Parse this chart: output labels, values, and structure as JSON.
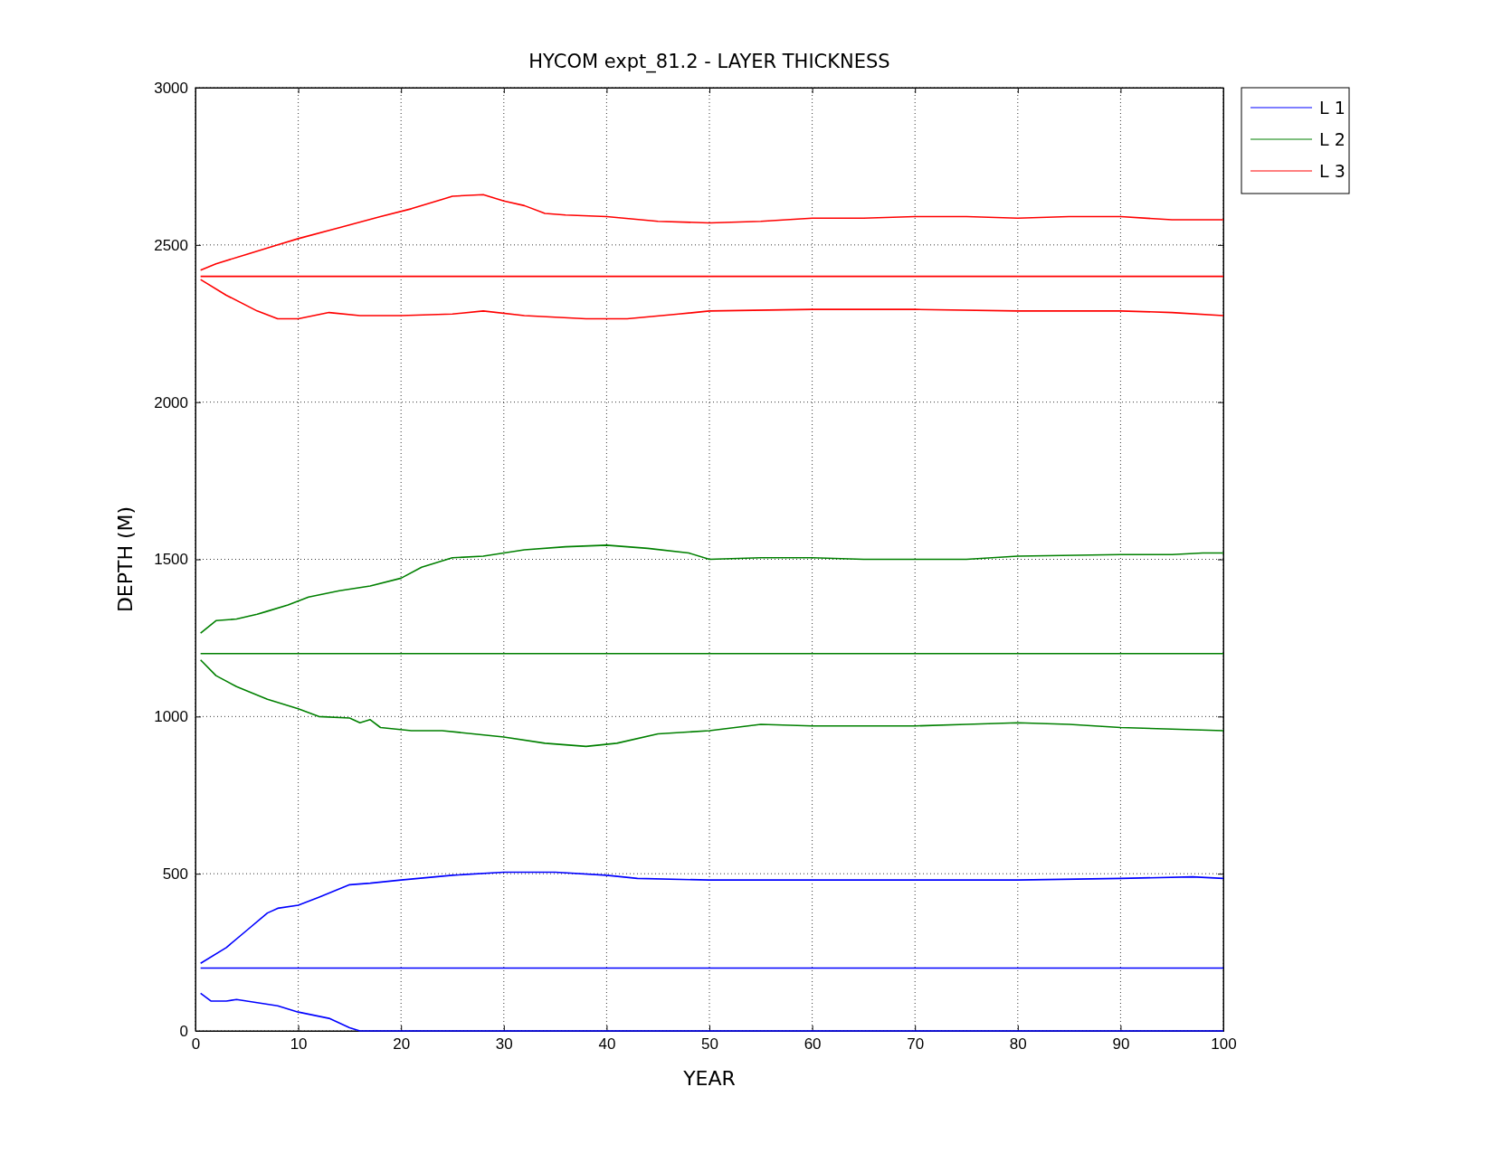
{
  "chart_data": {
    "type": "line",
    "title": "HYCOM expt_81.2 - LAYER THICKNESS",
    "xlabel": "YEAR",
    "ylabel": "DEPTH (M)",
    "xlim": [
      0,
      100
    ],
    "xticks": [
      0,
      10,
      20,
      30,
      40,
      50,
      60,
      70,
      80,
      90,
      100
    ],
    "ylim": [
      0,
      3000
    ],
    "yticks": [
      0,
      500,
      1000,
      1500,
      2000,
      2500,
      3000
    ],
    "grid": true,
    "legend": "top right",
    "line_style": "solid",
    "marker": "none",
    "series": [
      {
        "name": "L 1",
        "color": "#0000ff",
        "x": [
          0.5,
          100
        ],
        "values": [
          200,
          200
        ]
      },
      {
        "color": "#0000ff",
        "x": [
          0.5,
          3,
          5,
          7,
          8,
          10,
          12,
          15,
          17,
          20,
          25,
          30,
          35,
          40,
          43,
          50,
          60,
          80,
          90,
          97,
          100
        ],
        "values": [
          215,
          265,
          320,
          375,
          390,
          400,
          425,
          465,
          470,
          480,
          495,
          505,
          505,
          495,
          485,
          480,
          480,
          480,
          485,
          490,
          485
        ]
      },
      {
        "color": "#0000ff",
        "x": [
          0.5,
          1.5,
          3,
          4,
          6,
          8,
          10,
          13,
          15,
          16,
          100
        ],
        "values": [
          120,
          95,
          95,
          100,
          90,
          80,
          60,
          40,
          10,
          0,
          0
        ]
      },
      {
        "name": "L 2",
        "color": "#008000",
        "x": [
          0.5,
          100
        ],
        "values": [
          1200,
          1200
        ]
      },
      {
        "color": "#008000",
        "x": [
          0.5,
          2,
          4,
          6,
          7,
          9,
          11,
          14,
          17,
          20,
          22,
          25,
          28,
          32,
          36,
          40,
          44,
          48,
          50,
          55,
          60,
          65,
          75,
          80,
          90,
          95,
          98,
          100
        ],
        "values": [
          1265,
          1305,
          1310,
          1325,
          1335,
          1355,
          1380,
          1400,
          1415,
          1440,
          1475,
          1505,
          1510,
          1530,
          1540,
          1545,
          1535,
          1520,
          1500,
          1505,
          1505,
          1500,
          1500,
          1510,
          1515,
          1515,
          1520,
          1520
        ]
      },
      {
        "color": "#008000",
        "x": [
          0.5,
          2,
          4,
          7,
          10,
          12,
          15,
          16,
          17,
          18,
          21,
          24,
          27,
          30,
          34,
          38,
          41,
          45,
          50,
          55,
          60,
          70,
          75,
          80,
          85,
          90,
          95,
          100
        ],
        "values": [
          1180,
          1130,
          1095,
          1055,
          1025,
          1000,
          995,
          980,
          990,
          965,
          955,
          955,
          945,
          935,
          915,
          905,
          915,
          945,
          955,
          975,
          970,
          970,
          975,
          980,
          975,
          965,
          960,
          955
        ]
      },
      {
        "name": "L 3",
        "color": "#ff0000",
        "x": [
          0.5,
          100
        ],
        "values": [
          2400,
          2400
        ]
      },
      {
        "color": "#ff0000",
        "x": [
          0.5,
          2,
          5,
          8,
          10,
          14,
          18,
          21,
          24,
          25,
          28,
          30,
          32,
          34,
          36,
          40,
          45,
          50,
          55,
          60,
          65,
          70,
          75,
          80,
          85,
          90,
          95,
          100
        ],
        "values": [
          2420,
          2440,
          2470,
          2500,
          2520,
          2555,
          2590,
          2615,
          2645,
          2655,
          2660,
          2640,
          2625,
          2600,
          2595,
          2590,
          2575,
          2570,
          2575,
          2585,
          2585,
          2590,
          2590,
          2585,
          2590,
          2590,
          2580,
          2580
        ]
      },
      {
        "color": "#ff0000",
        "x": [
          0.5,
          3,
          6,
          8,
          10,
          13,
          16,
          20,
          25,
          28,
          32,
          38,
          42,
          47,
          50,
          60,
          70,
          80,
          90,
          95,
          100
        ],
        "values": [
          2390,
          2340,
          2290,
          2265,
          2265,
          2285,
          2275,
          2275,
          2280,
          2290,
          2275,
          2265,
          2265,
          2280,
          2290,
          2295,
          2295,
          2290,
          2290,
          2285,
          2275
        ]
      }
    ]
  }
}
